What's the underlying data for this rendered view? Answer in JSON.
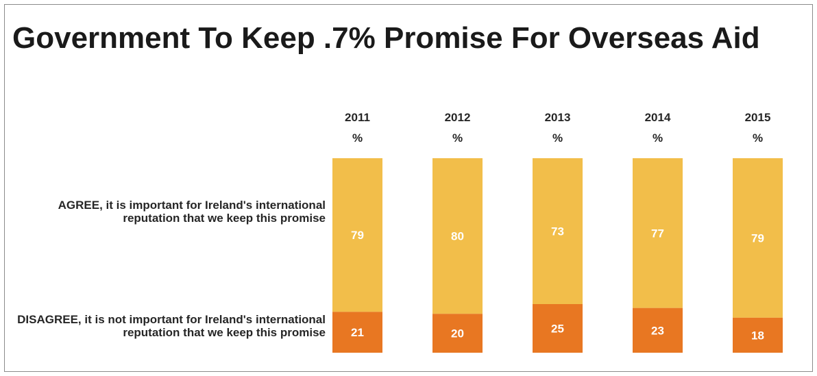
{
  "colors": {
    "agree": "#F2BE4A",
    "disagree": "#E87722"
  },
  "chart_data": {
    "type": "bar",
    "stacked": true,
    "title": "Government To Keep .7% Promise For Overseas Aid",
    "categories": [
      "2011",
      "2012",
      "2013",
      "2014",
      "2015"
    ],
    "unit_label": "%",
    "series": [
      {
        "name": "AGREE, it is important for Ireland's international reputation that we keep this promise",
        "values": [
          79,
          80,
          73,
          77,
          79
        ]
      },
      {
        "name": "DISAGREE, it is not important for Ireland's international reputation that we keep this promise",
        "values": [
          21,
          20,
          25,
          23,
          18
        ]
      }
    ],
    "ylim": [
      0,
      100
    ],
    "grid": false,
    "legend": "left"
  }
}
